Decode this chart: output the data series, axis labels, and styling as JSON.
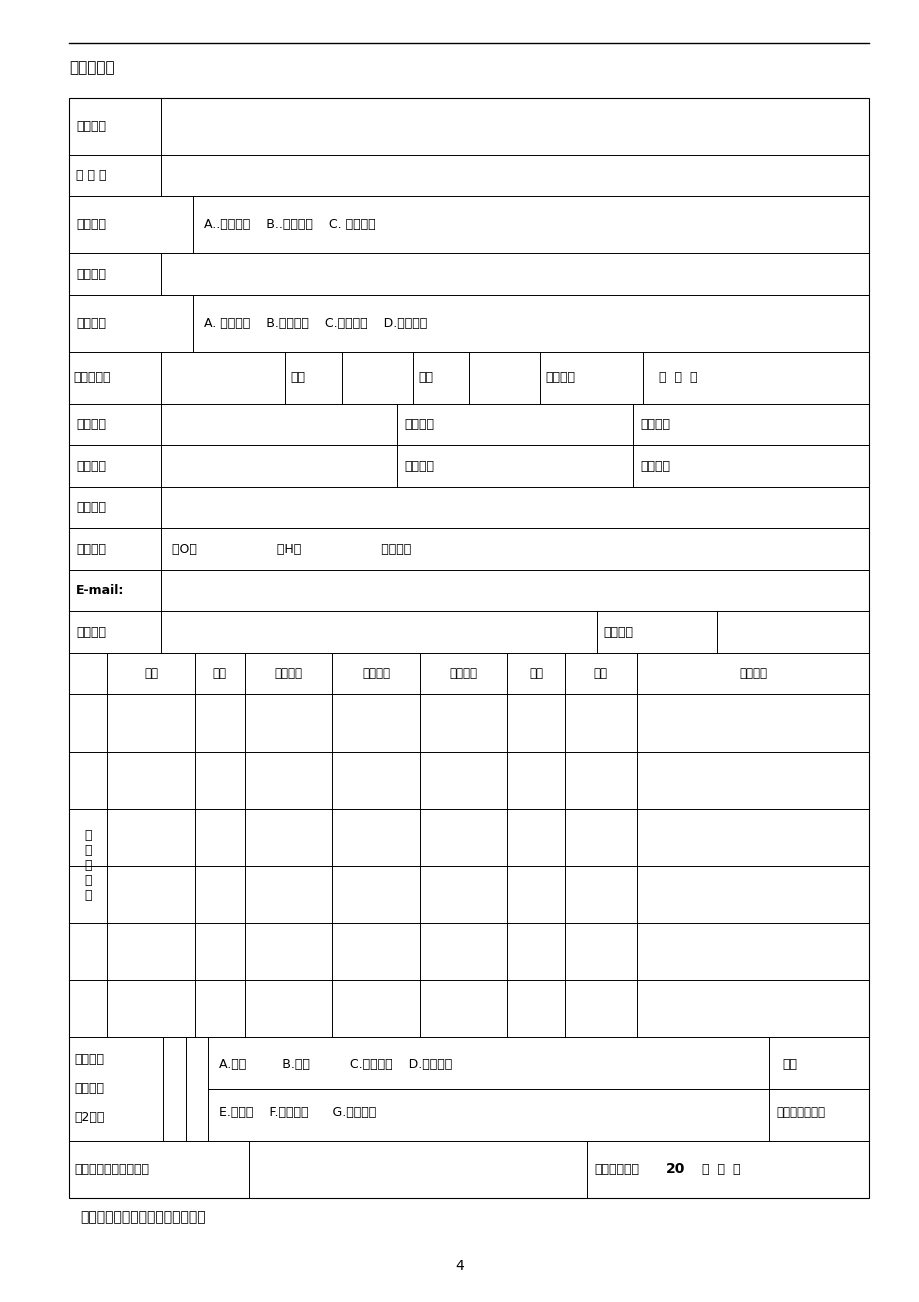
{
  "title": "一、数据表",
  "page_number": "4",
  "note": "注：主要参加者栏目可加行或加页",
  "bg_color": "#ffffff",
  "row0_label": "项目名称",
  "row1_label": "主 题 词",
  "row2_label": "项目类别",
  "row2_content": "A..重点项目    B..一般项目    C. 青年项目",
  "row3_label": "学科分类",
  "row4_label": "研究类型",
  "row4_content": "A. 基础研究    B.应用研究    C.综合研究    D.其他研究",
  "row5_label": "负责人姓名",
  "row5_col1": "性别",
  "row5_col2": "民族",
  "row5_col3": "出生日期",
  "row5_col4": "年  月  日",
  "row6_label": "行政职务",
  "row6_col1": "专业职务",
  "row6_col2": "研究专长",
  "row7_label": "最后学历",
  "row7_col1": "最后学位",
  "row7_col2": "担任导师",
  "row8_label": "工作单位",
  "row9_label": "联系电话",
  "row9_content": "（O）                    （H）                    （手机）",
  "row10_label": "E-mail:",
  "row11_label": "通讯地址",
  "row11_postal": "邮政编码",
  "participants_cols": [
    "姓名",
    "性别",
    "出生年月",
    "专业职务",
    "研究专长",
    "学历",
    "学位",
    "工作单位"
  ],
  "participants_label": "主\n要\n参\n加\n者",
  "achievements_label": "预期成果\n（最多限\n填2项）",
  "achievements_row1": "A.专著         B.译著          C.系列论文    D.研究报告",
  "achievements_row2": "E.工具书    F.电脑软件      G.音像制品",
  "achievements_right1": "字数",
  "achievements_right2": "（单位：千字）",
  "budget_label": "申请经费（单位：元）",
  "budget_time_label": "预计完成时间",
  "budget_year": "20",
  "budget_date": "年  月  日"
}
